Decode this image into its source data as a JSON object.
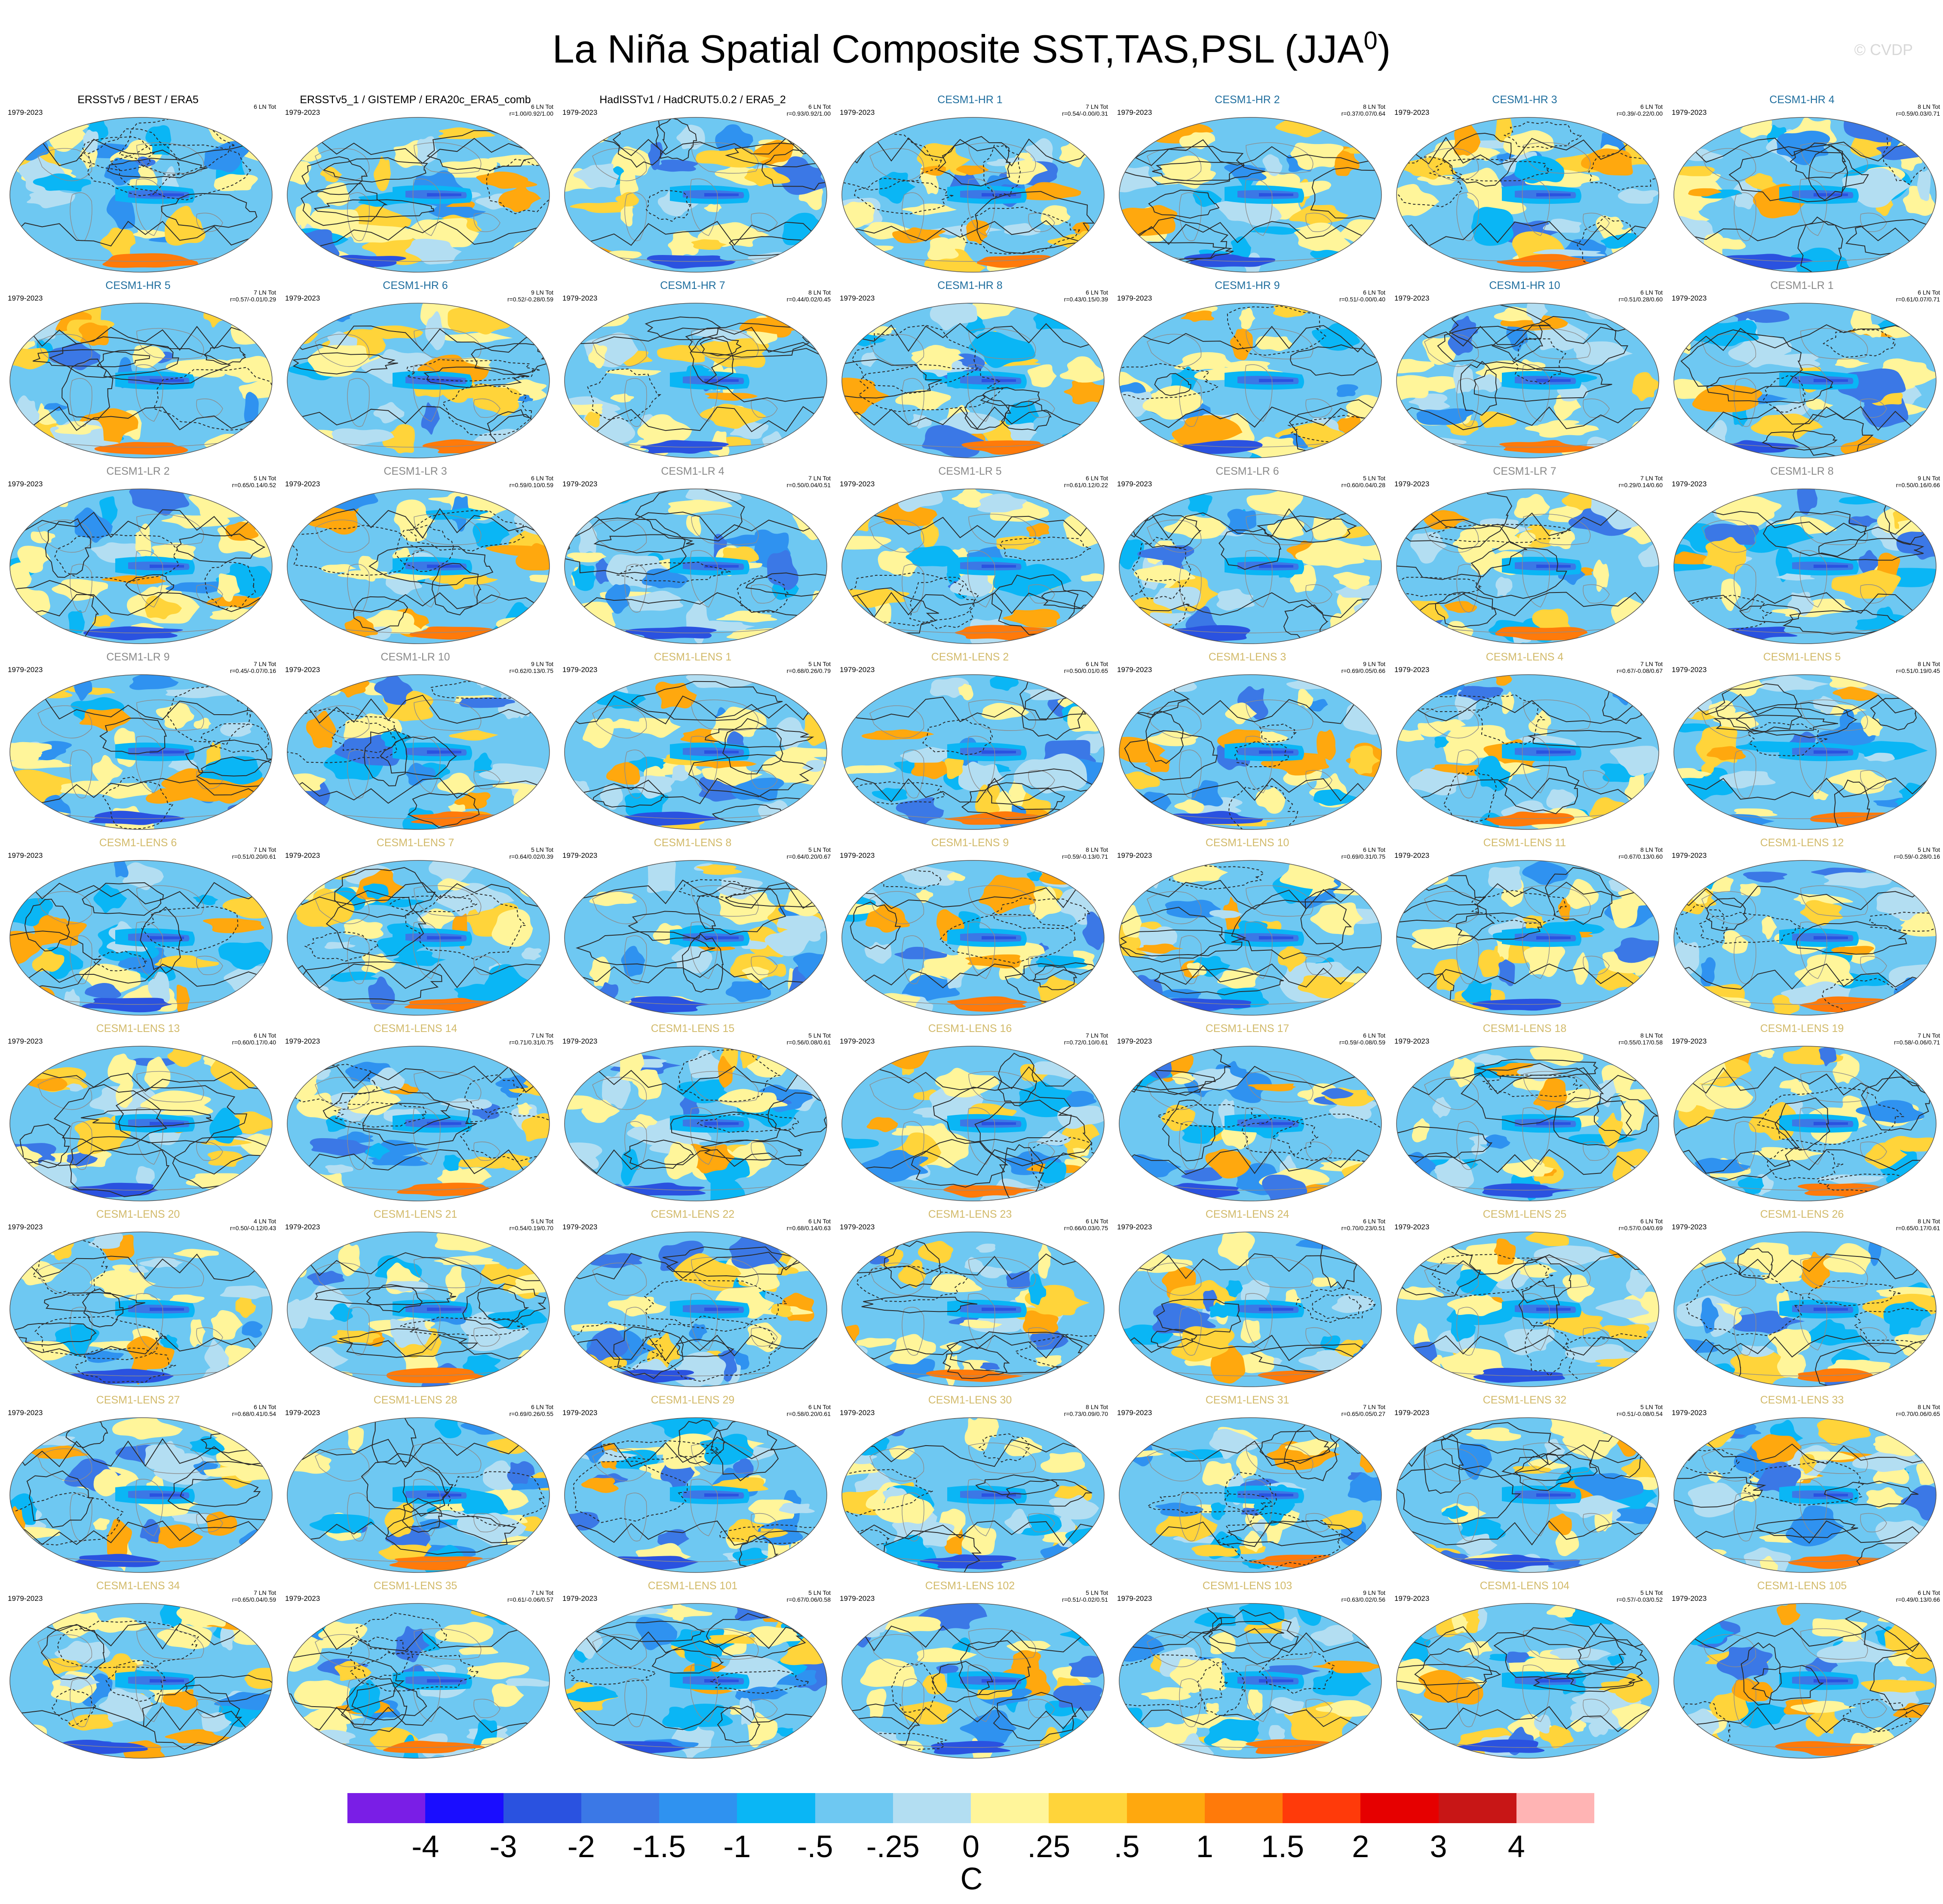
{
  "figure": {
    "title": "La Niña Spatial Composite SST,TAS,PSL (JJA",
    "title_superscript": "0",
    "title_suffix": ")",
    "watermark": "© CVDP",
    "units": "C"
  },
  "colors": {
    "obs": "#000000",
    "hr": "#1f6e9e",
    "lr": "#8a8a8a",
    "lens": "#d2ba6a"
  },
  "colorbar": {
    "colors": [
      "#7a1ee6",
      "#1a0dff",
      "#2a52e0",
      "#3b78e6",
      "#2f92f0",
      "#0ab6f5",
      "#6ec8f2",
      "#b3def2",
      "#fff59a",
      "#ffd43a",
      "#ffa80e",
      "#ff7a0a",
      "#ff3a0a",
      "#e60000",
      "#c81616",
      "#ffb4b4"
    ],
    "labels": [
      "-4",
      "-3",
      "-2",
      "-1.5",
      "-1",
      "-.5",
      "-.25",
      "0",
      ".25",
      ".5",
      "1",
      "1.5",
      "2",
      "3",
      "4"
    ]
  },
  "panels": [
    {
      "title": "ERSSTv5 / BEST / ERA5",
      "group": "obs",
      "period": "1979-2023",
      "count": "6 LN Tot",
      "stats": ""
    },
    {
      "title": "ERSSTv5_1 / GISTEMP / ERA20c_ERA5_comb",
      "group": "obs",
      "period": "1979-2023",
      "count": "6 LN Tot",
      "stats": "r=1.00/0.92/1.00"
    },
    {
      "title": "HadISSTv1 / HadCRUT5.0.2 / ERA5_2",
      "group": "obs",
      "period": "1979-2023",
      "count": "6 LN Tot",
      "stats": "r=0.93/0.92/1.00"
    },
    {
      "title": "CESM1-HR 1",
      "group": "hr",
      "period": "1979-2023",
      "count": "7 LN Tot",
      "stats": "r=0.54/-0.00/0.31"
    },
    {
      "title": "CESM1-HR 2",
      "group": "hr",
      "period": "1979-2023",
      "count": "8 LN Tot",
      "stats": "r=0.37/0.07/0.64"
    },
    {
      "title": "CESM1-HR 3",
      "group": "hr",
      "period": "1979-2023",
      "count": "6 LN Tot",
      "stats": "r=0.39/-0.22/0.00"
    },
    {
      "title": "CESM1-HR 4",
      "group": "hr",
      "period": "1979-2023",
      "count": "8 LN Tot",
      "stats": "r=0.59/0.03/0.71"
    },
    {
      "title": "CESM1-HR 5",
      "group": "hr",
      "period": "1979-2023",
      "count": "7 LN Tot",
      "stats": "r=0.57/-0.01/0.29"
    },
    {
      "title": "CESM1-HR 6",
      "group": "hr",
      "period": "1979-2023",
      "count": "9 LN Tot",
      "stats": "r=0.52/-0.28/0.59"
    },
    {
      "title": "CESM1-HR 7",
      "group": "hr",
      "period": "1979-2023",
      "count": "8 LN Tot",
      "stats": "r=0.44/0.02/0.45"
    },
    {
      "title": "CESM1-HR 8",
      "group": "hr",
      "period": "1979-2023",
      "count": "6 LN Tot",
      "stats": "r=0.43/0.15/0.39"
    },
    {
      "title": "CESM1-HR 9",
      "group": "hr",
      "period": "1979-2023",
      "count": "6 LN Tot",
      "stats": "r=0.51/-0.00/0.40"
    },
    {
      "title": "CESM1-HR 10",
      "group": "hr",
      "period": "1979-2023",
      "count": "6 LN Tot",
      "stats": "r=0.51/0.28/0.60"
    },
    {
      "title": "CESM1-LR 1",
      "group": "lr",
      "period": "1979-2023",
      "count": "6 LN Tot",
      "stats": "r=0.61/0.07/0.71"
    },
    {
      "title": "CESM1-LR 2",
      "group": "lr",
      "period": "1979-2023",
      "count": "5 LN Tot",
      "stats": "r=0.65/0.14/0.52"
    },
    {
      "title": "CESM1-LR 3",
      "group": "lr",
      "period": "1979-2023",
      "count": "6 LN Tot",
      "stats": "r=0.59/0.10/0.59"
    },
    {
      "title": "CESM1-LR 4",
      "group": "lr",
      "period": "1979-2023",
      "count": "7 LN Tot",
      "stats": "r=0.50/0.04/0.51"
    },
    {
      "title": "CESM1-LR 5",
      "group": "lr",
      "period": "1979-2023",
      "count": "6 LN Tot",
      "stats": "r=0.61/0.12/0.22"
    },
    {
      "title": "CESM1-LR 6",
      "group": "lr",
      "period": "1979-2023",
      "count": "5 LN Tot",
      "stats": "r=0.60/0.04/0.28"
    },
    {
      "title": "CESM1-LR 7",
      "group": "lr",
      "period": "1979-2023",
      "count": "7 LN Tot",
      "stats": "r=0.29/0.14/0.60"
    },
    {
      "title": "CESM1-LR 8",
      "group": "lr",
      "period": "1979-2023",
      "count": "9 LN Tot",
      "stats": "r=0.50/0.16/0.66"
    },
    {
      "title": "CESM1-LR 9",
      "group": "lr",
      "period": "1979-2023",
      "count": "7 LN Tot",
      "stats": "r=0.45/-0.07/0.16"
    },
    {
      "title": "CESM1-LR 10",
      "group": "lr",
      "period": "1979-2023",
      "count": "9 LN Tot",
      "stats": "r=0.62/0.13/0.75"
    },
    {
      "title": "CESM1-LENS 1",
      "group": "lens",
      "period": "1979-2023",
      "count": "5 LN Tot",
      "stats": "r=0.68/0.26/0.79"
    },
    {
      "title": "CESM1-LENS 2",
      "group": "lens",
      "period": "1979-2023",
      "count": "6 LN Tot",
      "stats": "r=0.50/0.01/0.65"
    },
    {
      "title": "CESM1-LENS 3",
      "group": "lens",
      "period": "1979-2023",
      "count": "9 LN Tot",
      "stats": "r=0.69/0.05/0.66"
    },
    {
      "title": "CESM1-LENS 4",
      "group": "lens",
      "period": "1979-2023",
      "count": "7 LN Tot",
      "stats": "r=0.67/-0.08/0.67"
    },
    {
      "title": "CESM1-LENS 5",
      "group": "lens",
      "period": "1979-2023",
      "count": "8 LN Tot",
      "stats": "r=0.51/0.19/0.45"
    },
    {
      "title": "CESM1-LENS 6",
      "group": "lens",
      "period": "1979-2023",
      "count": "7 LN Tot",
      "stats": "r=0.51/0.20/0.61"
    },
    {
      "title": "CESM1-LENS 7",
      "group": "lens",
      "period": "1979-2023",
      "count": "5 LN Tot",
      "stats": "r=0.64/0.02/0.39"
    },
    {
      "title": "CESM1-LENS 8",
      "group": "lens",
      "period": "1979-2023",
      "count": "5 LN Tot",
      "stats": "r=0.64/0.20/0.67"
    },
    {
      "title": "CESM1-LENS 9",
      "group": "lens",
      "period": "1979-2023",
      "count": "8 LN Tot",
      "stats": "r=0.59/-0.13/0.71"
    },
    {
      "title": "CESM1-LENS 10",
      "group": "lens",
      "period": "1979-2023",
      "count": "6 LN Tot",
      "stats": "r=0.69/0.31/0.75"
    },
    {
      "title": "CESM1-LENS 11",
      "group": "lens",
      "period": "1979-2023",
      "count": "8 LN Tot",
      "stats": "r=0.67/0.13/0.60"
    },
    {
      "title": "CESM1-LENS 12",
      "group": "lens",
      "period": "1979-2023",
      "count": "5 LN Tot",
      "stats": "r=0.59/-0.28/0.16"
    },
    {
      "title": "CESM1-LENS 13",
      "group": "lens",
      "period": "1979-2023",
      "count": "6 LN Tot",
      "stats": "r=0.60/0.17/0.40"
    },
    {
      "title": "CESM1-LENS 14",
      "group": "lens",
      "period": "1979-2023",
      "count": "7 LN Tot",
      "stats": "r=0.71/0.31/0.75"
    },
    {
      "title": "CESM1-LENS 15",
      "group": "lens",
      "period": "1979-2023",
      "count": "5 LN Tot",
      "stats": "r=0.56/0.08/0.61"
    },
    {
      "title": "CESM1-LENS 16",
      "group": "lens",
      "period": "1979-2023",
      "count": "7 LN Tot",
      "stats": "r=0.72/0.10/0.61"
    },
    {
      "title": "CESM1-LENS 17",
      "group": "lens",
      "period": "1979-2023",
      "count": "6 LN Tot",
      "stats": "r=0.59/-0.08/0.59"
    },
    {
      "title": "CESM1-LENS 18",
      "group": "lens",
      "period": "1979-2023",
      "count": "8 LN Tot",
      "stats": "r=0.55/0.17/0.58"
    },
    {
      "title": "CESM1-LENS 19",
      "group": "lens",
      "period": "1979-2023",
      "count": "7 LN Tot",
      "stats": "r=0.58/-0.06/0.71"
    },
    {
      "title": "CESM1-LENS 20",
      "group": "lens",
      "period": "1979-2023",
      "count": "4 LN Tot",
      "stats": "r=0.50/-0.12/0.43"
    },
    {
      "title": "CESM1-LENS 21",
      "group": "lens",
      "period": "1979-2023",
      "count": "5 LN Tot",
      "stats": "r=0.54/0.19/0.70"
    },
    {
      "title": "CESM1-LENS 22",
      "group": "lens",
      "period": "1979-2023",
      "count": "6 LN Tot",
      "stats": "r=0.68/0.14/0.63"
    },
    {
      "title": "CESM1-LENS 23",
      "group": "lens",
      "period": "1979-2023",
      "count": "6 LN Tot",
      "stats": "r=0.66/0.03/0.75"
    },
    {
      "title": "CESM1-LENS 24",
      "group": "lens",
      "period": "1979-2023",
      "count": "6 LN Tot",
      "stats": "r=0.70/0.23/0.51"
    },
    {
      "title": "CESM1-LENS 25",
      "group": "lens",
      "period": "1979-2023",
      "count": "6 LN Tot",
      "stats": "r=0.57/0.04/0.69"
    },
    {
      "title": "CESM1-LENS 26",
      "group": "lens",
      "period": "1979-2023",
      "count": "8 LN Tot",
      "stats": "r=0.65/0.17/0.61"
    },
    {
      "title": "CESM1-LENS 27",
      "group": "lens",
      "period": "1979-2023",
      "count": "6 LN Tot",
      "stats": "r=0.68/0.41/0.54"
    },
    {
      "title": "CESM1-LENS 28",
      "group": "lens",
      "period": "1979-2023",
      "count": "6 LN Tot",
      "stats": "r=0.69/0.26/0.55"
    },
    {
      "title": "CESM1-LENS 29",
      "group": "lens",
      "period": "1979-2023",
      "count": "6 LN Tot",
      "stats": "r=0.58/0.20/0.61"
    },
    {
      "title": "CESM1-LENS 30",
      "group": "lens",
      "period": "1979-2023",
      "count": "8 LN Tot",
      "stats": "r=0.73/0.09/0.70"
    },
    {
      "title": "CESM1-LENS 31",
      "group": "lens",
      "period": "1979-2023",
      "count": "7 LN Tot",
      "stats": "r=0.65/0.05/0.27"
    },
    {
      "title": "CESM1-LENS 32",
      "group": "lens",
      "period": "1979-2023",
      "count": "5 LN Tot",
      "stats": "r=0.51/-0.08/0.54"
    },
    {
      "title": "CESM1-LENS 33",
      "group": "lens",
      "period": "1979-2023",
      "count": "8 LN Tot",
      "stats": "r=0.70/0.06/0.65"
    },
    {
      "title": "CESM1-LENS 34",
      "group": "lens",
      "period": "1979-2023",
      "count": "7 LN Tot",
      "stats": "r=0.65/0.04/0.59"
    },
    {
      "title": "CESM1-LENS 35",
      "group": "lens",
      "period": "1979-2023",
      "count": "7 LN Tot",
      "stats": "r=0.61/-0.06/0.57"
    },
    {
      "title": "CESM1-LENS 101",
      "group": "lens",
      "period": "1979-2023",
      "count": "5 LN Tot",
      "stats": "r=0.67/0.06/0.58"
    },
    {
      "title": "CESM1-LENS 102",
      "group": "lens",
      "period": "1979-2023",
      "count": "5 LN Tot",
      "stats": "r=0.51/-0.02/0.51"
    },
    {
      "title": "CESM1-LENS 103",
      "group": "lens",
      "period": "1979-2023",
      "count": "9 LN Tot",
      "stats": "r=0.63/0.02/0.56"
    },
    {
      "title": "CESM1-LENS 104",
      "group": "lens",
      "period": "1979-2023",
      "count": "5 LN Tot",
      "stats": "r=0.57/-0.03/0.52"
    },
    {
      "title": "CESM1-LENS 105",
      "group": "lens",
      "period": "1979-2023",
      "count": "6 LN Tot",
      "stats": "r=0.49/0.13/0.66"
    }
  ]
}
